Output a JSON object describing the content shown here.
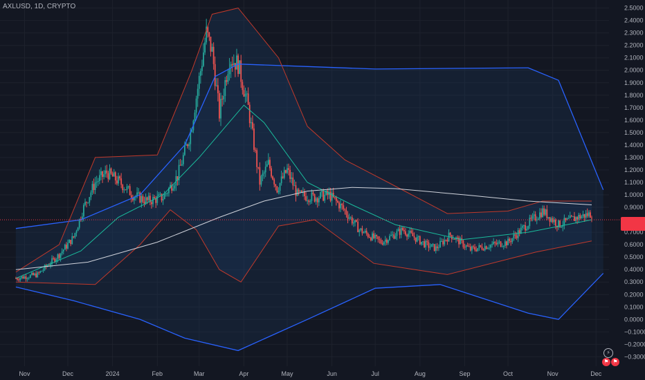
{
  "header": {
    "symbol_label": "AXLUSD, 1D, CRYPTO"
  },
  "colors": {
    "background": "#131722",
    "grid": "#1e222d",
    "up": "#26a69a",
    "down": "#ef5350",
    "outer_band": "#2962ff",
    "mid_band": "#c0392b",
    "inner_band": "#1abc9c",
    "band_fill": "#1e3a5f",
    "ma_long": "#d1d4dc",
    "price_line": "#f23645"
  },
  "icons": [
    "bolt-icon",
    "flag-icon",
    "flag-icon"
  ],
  "chart_data": {
    "type": "candlestick",
    "x_ticks": [
      "Nov",
      "Dec",
      "2024",
      "Feb",
      "Mar",
      "Apr",
      "May",
      "Jun",
      "Jul",
      "Aug",
      "Sep",
      "Oct",
      "Nov",
      "Dec"
    ],
    "y_ticks": [
      "2.5000",
      "2.4000",
      "2.3000",
      "2.2000",
      "2.1000",
      "2.0000",
      "1.9000",
      "1.8000",
      "1.7000",
      "1.6000",
      "1.5000",
      "1.4000",
      "1.3000",
      "1.2000",
      "1.1000",
      "1.0000",
      "0.9000",
      "0.7000",
      "0.6000",
      "0.5000",
      "0.4000",
      "0.3000",
      "0.2000",
      "0.1000",
      "0.0000",
      "−0.1000",
      "−0.2000",
      "−0.3000"
    ],
    "ylim": [
      -0.32,
      2.52
    ],
    "last_price": 0.8,
    "price_anchors": [
      [
        "2023-10-26",
        0.33
      ],
      [
        "2023-11-10",
        0.36
      ],
      [
        "2023-11-25",
        0.52
      ],
      [
        "2023-12-05",
        0.66
      ],
      [
        "2023-12-12",
        0.9
      ],
      [
        "2023-12-20",
        1.1
      ],
      [
        "2023-12-28",
        1.18
      ],
      [
        "2024-01-06",
        1.1
      ],
      [
        "2024-01-15",
        1.0
      ],
      [
        "2024-01-25",
        0.95
      ],
      [
        "2024-02-05",
        0.98
      ],
      [
        "2024-02-15",
        1.15
      ],
      [
        "2024-02-24",
        1.5
      ],
      [
        "2024-03-02",
        2.0
      ],
      [
        "2024-03-06",
        2.3
      ],
      [
        "2024-03-10",
        2.15
      ],
      [
        "2024-03-15",
        1.65
      ],
      [
        "2024-03-22",
        2.1
      ],
      [
        "2024-03-28",
        2.05
      ],
      [
        "2024-04-04",
        1.7
      ],
      [
        "2024-04-12",
        1.1
      ],
      [
        "2024-04-18",
        1.25
      ],
      [
        "2024-04-24",
        1.05
      ],
      [
        "2024-05-01",
        1.2
      ],
      [
        "2024-05-08",
        1.0
      ],
      [
        "2024-05-20",
        0.98
      ],
      [
        "2024-05-30",
        1.0
      ],
      [
        "2024-06-08",
        0.9
      ],
      [
        "2024-06-20",
        0.72
      ],
      [
        "2024-07-05",
        0.62
      ],
      [
        "2024-07-20",
        0.72
      ],
      [
        "2024-08-05",
        0.6
      ],
      [
        "2024-08-12",
        0.57
      ],
      [
        "2024-08-22",
        0.68
      ],
      [
        "2024-09-05",
        0.56
      ],
      [
        "2024-09-20",
        0.6
      ],
      [
        "2024-10-01",
        0.62
      ],
      [
        "2024-10-14",
        0.76
      ],
      [
        "2024-10-25",
        0.87
      ],
      [
        "2024-11-05",
        0.76
      ],
      [
        "2024-11-18",
        0.82
      ],
      [
        "2024-11-28",
        0.85
      ]
    ],
    "outer_upper_band": [
      [
        "2023-10-26",
        0.73
      ],
      [
        "2023-12-10",
        0.8
      ],
      [
        "2024-01-20",
        1.0
      ],
      [
        "2024-02-20",
        1.4
      ],
      [
        "2024-03-12",
        1.95
      ],
      [
        "2024-03-28",
        2.05
      ],
      [
        "2024-05-15",
        2.03
      ],
      [
        "2024-07-01",
        2.01
      ],
      [
        "2024-10-15",
        2.02
      ],
      [
        "2024-11-05",
        1.92
      ],
      [
        "2024-12-06",
        1.04
      ]
    ],
    "outer_lower_band": [
      [
        "2023-10-26",
        0.26
      ],
      [
        "2023-12-05",
        0.15
      ],
      [
        "2024-01-20",
        0.0
      ],
      [
        "2024-02-20",
        -0.15
      ],
      [
        "2024-03-28",
        -0.25
      ],
      [
        "2024-05-15",
        0.0
      ],
      [
        "2024-07-01",
        0.25
      ],
      [
        "2024-08-15",
        0.28
      ],
      [
        "2024-10-15",
        0.05
      ],
      [
        "2024-11-05",
        0.0
      ],
      [
        "2024-12-06",
        0.37
      ]
    ],
    "mid_upper_band": [
      [
        "2023-10-26",
        0.38
      ],
      [
        "2023-11-25",
        0.6
      ],
      [
        "2023-12-20",
        1.3
      ],
      [
        "2024-02-01",
        1.32
      ],
      [
        "2024-02-25",
        2.0
      ],
      [
        "2024-03-10",
        2.45
      ],
      [
        "2024-03-28",
        2.5
      ],
      [
        "2024-04-25",
        2.1
      ],
      [
        "2024-05-15",
        1.55
      ],
      [
        "2024-06-10",
        1.28
      ],
      [
        "2024-07-10",
        1.1
      ],
      [
        "2024-08-20",
        0.85
      ],
      [
        "2024-10-01",
        0.87
      ],
      [
        "2024-10-25",
        0.95
      ],
      [
        "2024-11-28",
        0.95
      ]
    ],
    "mid_lower_band": [
      [
        "2023-10-26",
        0.3
      ],
      [
        "2023-12-20",
        0.28
      ],
      [
        "2024-01-20",
        0.6
      ],
      [
        "2024-02-10",
        0.88
      ],
      [
        "2024-02-28",
        0.72
      ],
      [
        "2024-03-15",
        0.4
      ],
      [
        "2024-03-30",
        0.3
      ],
      [
        "2024-04-25",
        0.75
      ],
      [
        "2024-05-20",
        0.8
      ],
      [
        "2024-06-30",
        0.45
      ],
      [
        "2024-08-20",
        0.36
      ],
      [
        "2024-10-20",
        0.54
      ],
      [
        "2024-11-28",
        0.63
      ]
    ],
    "long_moving_average": [
      [
        "2023-10-26",
        0.4
      ],
      [
        "2023-12-15",
        0.46
      ],
      [
        "2024-02-01",
        0.62
      ],
      [
        "2024-03-15",
        0.82
      ],
      [
        "2024-04-15",
        0.95
      ],
      [
        "2024-05-15",
        1.03
      ],
      [
        "2024-06-15",
        1.06
      ],
      [
        "2024-07-15",
        1.05
      ],
      [
        "2024-09-01",
        1.0
      ],
      [
        "2024-10-15",
        0.95
      ],
      [
        "2024-11-28",
        0.92
      ]
    ],
    "mid_moving_average": [
      [
        "2023-10-26",
        0.33
      ],
      [
        "2023-12-10",
        0.55
      ],
      [
        "2024-01-05",
        0.82
      ],
      [
        "2024-02-05",
        1.0
      ],
      [
        "2024-03-01",
        1.3
      ],
      [
        "2024-04-01",
        1.72
      ],
      [
        "2024-04-15",
        1.58
      ],
      [
        "2024-05-15",
        1.1
      ],
      [
        "2024-06-15",
        0.92
      ],
      [
        "2024-07-15",
        0.76
      ],
      [
        "2024-08-30",
        0.64
      ],
      [
        "2024-10-15",
        0.7
      ],
      [
        "2024-11-28",
        0.8
      ]
    ],
    "grid": true
  }
}
